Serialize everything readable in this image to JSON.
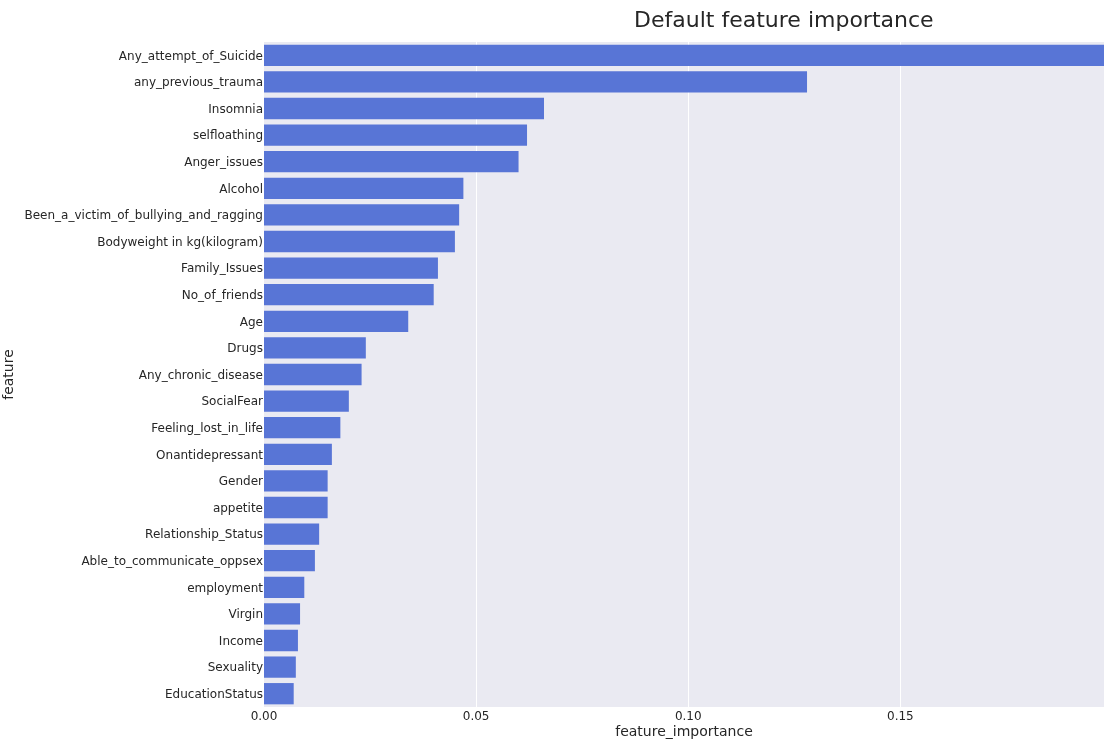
{
  "chart_data": {
    "type": "bar",
    "orientation": "horizontal",
    "title": "Default feature importance",
    "xlabel": "feature_importance",
    "ylabel": "feature",
    "categories": [
      "Any_attempt_of_Suicide",
      "any_previous_trauma",
      "Insomnia",
      "selfloathing",
      "Anger_issues",
      "Alcohol",
      "Been_a_victim_of_bullying_and_ragging",
      "Bodyweight in kg(kilogram)",
      "Family_Issues",
      "No_of_friends",
      "Age",
      "Drugs",
      "Any_chronic_disease",
      "SocialFear",
      "Feeling_lost_in_life",
      "Onantidepressant",
      "Gender",
      "appetite",
      "Relationship_Status",
      "Able_to_communicate_oppsex",
      "employment",
      "Virgin",
      "Income",
      "Sexuality",
      "EducationStatus"
    ],
    "values": [
      0.198,
      0.128,
      0.066,
      0.062,
      0.06,
      0.047,
      0.046,
      0.045,
      0.041,
      0.04,
      0.034,
      0.024,
      0.023,
      0.02,
      0.018,
      0.016,
      0.015,
      0.015,
      0.013,
      0.012,
      0.0095,
      0.0085,
      0.008,
      0.0075,
      0.007
    ],
    "color": "#5875d6",
    "xlim": [
      0,
      0.198
    ],
    "xticks": [
      {
        "value": 0,
        "label": "0.00"
      },
      {
        "value": 0.05,
        "label": "0.05"
      },
      {
        "value": 0.1,
        "label": "0.10"
      },
      {
        "value": 0.15,
        "label": "0.15"
      }
    ],
    "grid": "x",
    "legend": false
  }
}
